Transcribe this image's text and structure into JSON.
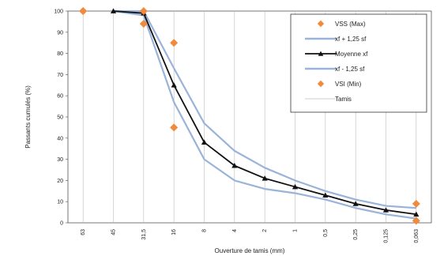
{
  "chart_data": {
    "type": "line",
    "xlabel": "Ouverture de tamis (mm)",
    "ylabel": "Passants cumulés (%)",
    "ylim": [
      0,
      100
    ],
    "yticks": [
      0,
      10,
      20,
      30,
      40,
      50,
      60,
      70,
      80,
      90,
      100
    ],
    "sieves": [
      "63",
      "45",
      "31,5",
      "16",
      "8",
      "4",
      "2",
      "1",
      "0,5",
      "0,25",
      "0,125",
      "0,063"
    ],
    "grid": "vertical lines at each sieve",
    "legend_position": "top-right",
    "series": [
      {
        "name": "VSS (Max)",
        "style": "marker",
        "color": "#f08a3c",
        "points": [
          {
            "sieve": "63",
            "y": 100
          },
          {
            "sieve": "31,5",
            "y": 100
          },
          {
            "sieve": "16",
            "y": 85
          },
          {
            "sieve": "0,063",
            "y": 9
          }
        ]
      },
      {
        "name": "xf + 1,25 sf",
        "style": "line",
        "color": "#9ab3d9",
        "values": [
          null,
          100,
          100,
          73,
          47,
          34,
          26,
          20,
          15,
          11,
          8,
          7
        ]
      },
      {
        "name": "Moyenne xf",
        "style": "line-marker",
        "color": "#111111",
        "values": [
          null,
          100,
          99,
          65,
          38,
          27,
          21,
          17,
          13,
          9,
          6,
          4
        ]
      },
      {
        "name": "xf - 1,25 sf",
        "style": "line",
        "color": "#9ab3d9",
        "values": [
          null,
          100,
          98,
          57,
          30,
          20,
          16,
          14,
          11,
          7,
          4,
          2
        ]
      },
      {
        "name": "VSI (Min)",
        "style": "marker",
        "color": "#f08a3c",
        "points": [
          {
            "sieve": "63",
            "y": 100
          },
          {
            "sieve": "31,5",
            "y": 94
          },
          {
            "sieve": "16",
            "y": 45
          },
          {
            "sieve": "0,063",
            "y": 1
          }
        ]
      },
      {
        "name": "Tamis",
        "style": "thin-line",
        "color": "#bbbbbb"
      }
    ]
  }
}
